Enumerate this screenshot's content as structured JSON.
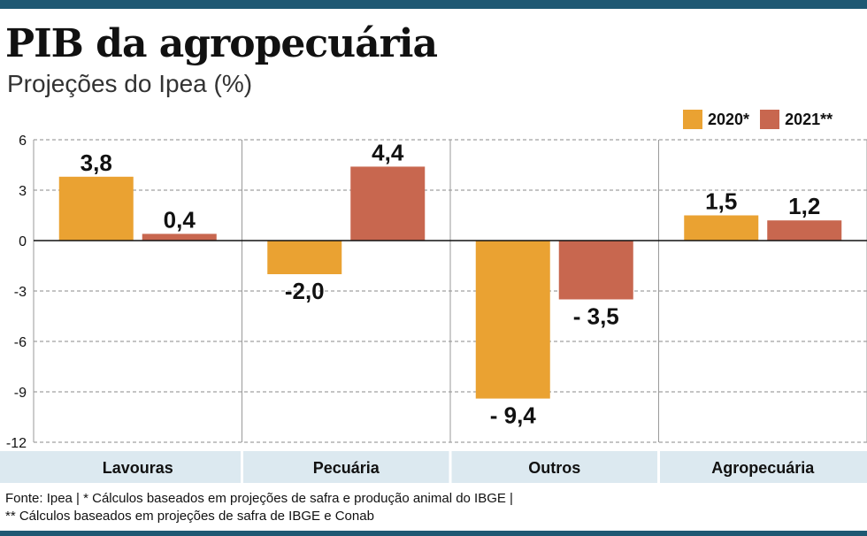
{
  "title": "PIB da agropecuária",
  "subtitle": "Projeções do Ipea (%)",
  "footnotes": [
    "Fonte: Ipea | * Cálculos baseados em projeções de safra e produção animal do IBGE |",
    "** Cálculos baseados em projeções de safra de IBGE e Conab"
  ],
  "colors": {
    "series_2020": "#eaa232",
    "series_2021": "#c8674f",
    "category_band": "#dce9f0",
    "frame": "#1f5873"
  },
  "chart_data": {
    "type": "bar",
    "categories": [
      "Lavouras",
      "Pecuária",
      "Outros",
      "Agropecuária"
    ],
    "series": [
      {
        "name": "2020*",
        "values": [
          3.8,
          -2.0,
          -9.4,
          1.5
        ],
        "labels": [
          "3,8",
          "-2,0",
          "- 9,4",
          "1,5"
        ],
        "color": "#eaa232"
      },
      {
        "name": "2021**",
        "values": [
          0.4,
          4.4,
          -3.5,
          1.2
        ],
        "labels": [
          "0,4",
          "4,4",
          "- 3,5",
          "1,2"
        ],
        "color": "#c8674f"
      }
    ],
    "yticks": [
      6,
      3,
      0,
      -3,
      -6,
      -9,
      -12
    ],
    "ylim": [
      -12,
      6
    ],
    "grid": true,
    "legend": "top-right"
  }
}
